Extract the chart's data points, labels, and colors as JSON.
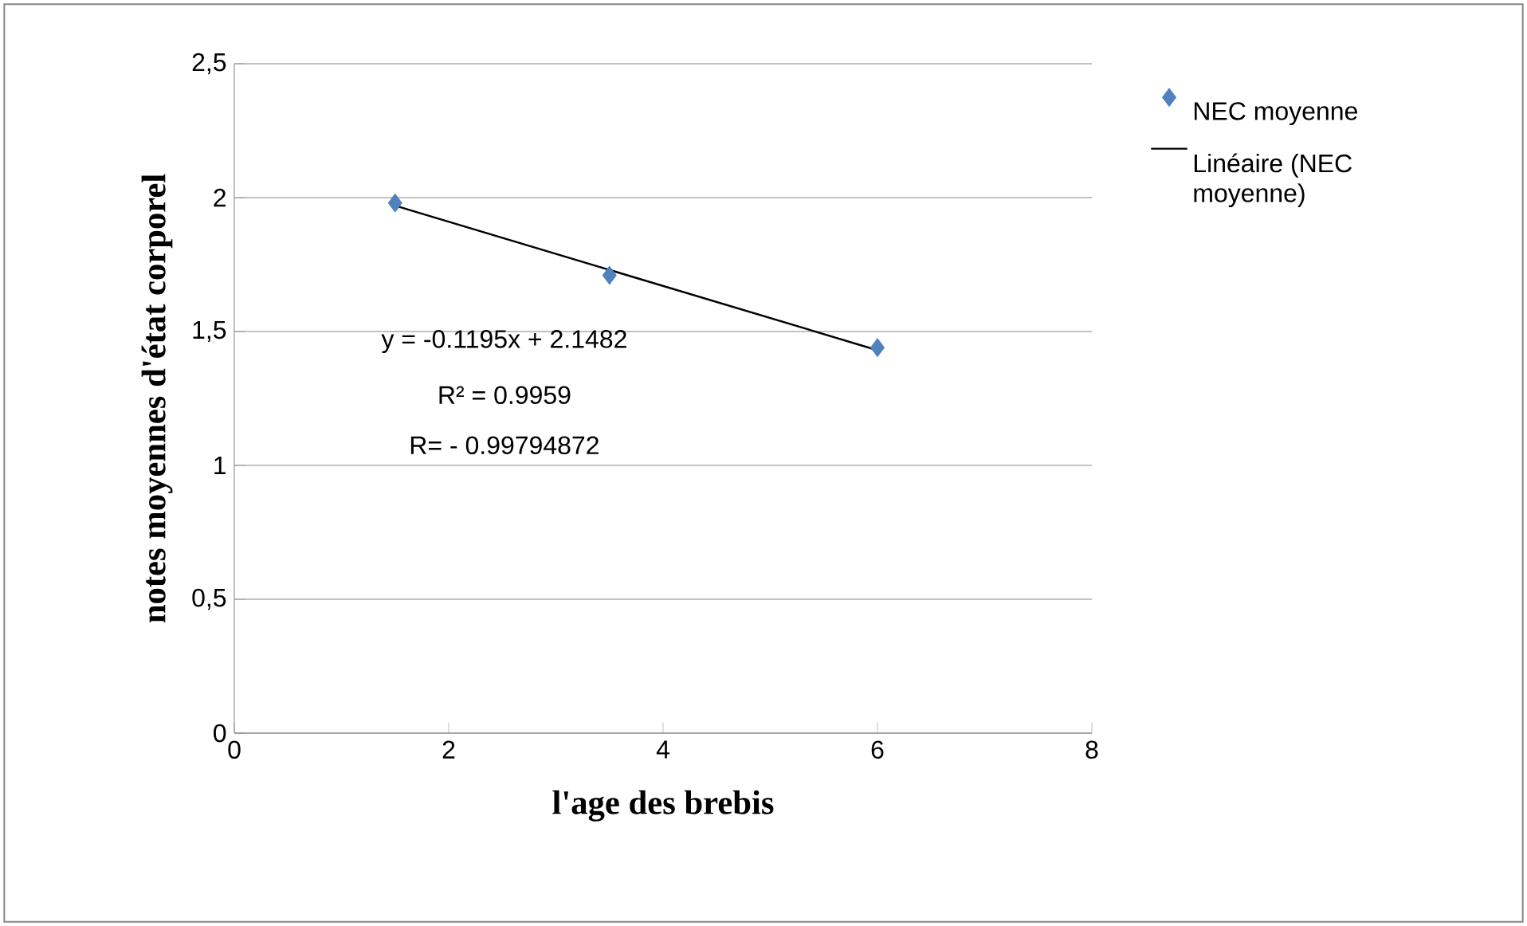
{
  "chart_data": {
    "type": "scatter",
    "xlabel": "l'age des brebis",
    "ylabel": "notes moyennes d'état corporel",
    "xlim": [
      0,
      8
    ],
    "xticks": [
      0,
      2,
      4,
      6,
      8
    ],
    "ylim": [
      0,
      2.5
    ],
    "yticks": [
      0,
      {
        "value": 0.5,
        "label": "0,5"
      },
      1,
      {
        "value": 1.5,
        "label": "1,5"
      },
      2,
      {
        "value": 2.5,
        "label": "2,5"
      }
    ],
    "grid": "y",
    "legend": "top right",
    "series": [
      {
        "name": "NEC moyenne",
        "color": "#4f81bd",
        "marker": "diamond",
        "x": [
          1.5,
          3.5,
          6
        ],
        "values": [
          1.98,
          1.71,
          1.44
        ]
      },
      {
        "name": "Linéaire (NEC moyenne)",
        "type": "line",
        "color": "#000000",
        "marker": "none",
        "line_style": "solid",
        "x": [
          1.5,
          6
        ],
        "values": [
          1.97,
          1.43
        ]
      }
    ],
    "annotations": [
      "y = -0.1195x + 2.1482",
      "R² = 0.9959",
      "R= - 0.99794872"
    ]
  }
}
